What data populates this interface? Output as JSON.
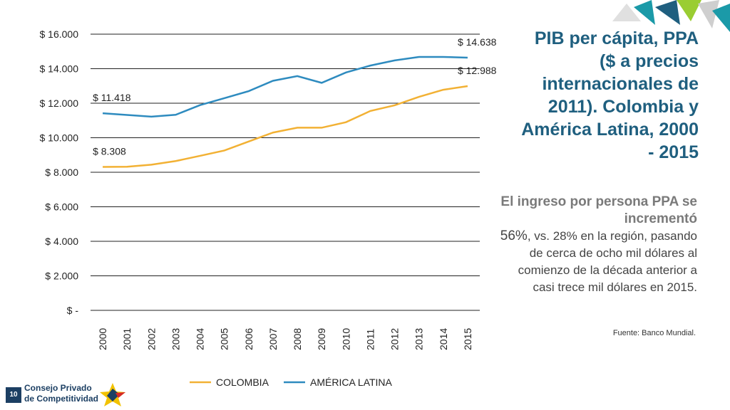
{
  "chart_data": {
    "type": "line",
    "x": [
      "2000",
      "2001",
      "2002",
      "2003",
      "2004",
      "2005",
      "2006",
      "2007",
      "2008",
      "2009",
      "2010",
      "2011",
      "2012",
      "2013",
      "2014",
      "2015"
    ],
    "series": [
      {
        "name": "COLOMBIA",
        "color": "#f2b134",
        "values": [
          8308,
          8320,
          8440,
          8650,
          8950,
          9260,
          9780,
          10300,
          10580,
          10580,
          10900,
          11550,
          11880,
          12370,
          12780,
          12988
        ]
      },
      {
        "name": "AMÉRICA LATINA",
        "color": "#2e8bbf",
        "values": [
          11418,
          11320,
          11220,
          11330,
          11890,
          12290,
          12700,
          13300,
          13570,
          13180,
          13780,
          14180,
          14480,
          14680,
          14680,
          14638
        ]
      }
    ],
    "y_ticks": [
      {
        "value": 0,
        "label": "$ -"
      },
      {
        "value": 2000,
        "label": "$ 2.000"
      },
      {
        "value": 4000,
        "label": "$ 4.000"
      },
      {
        "value": 6000,
        "label": "$ 6.000"
      },
      {
        "value": 8000,
        "label": "$ 8.000"
      },
      {
        "value": 10000,
        "label": "$ 10.000"
      },
      {
        "value": 12000,
        "label": "$ 12.000"
      },
      {
        "value": 14000,
        "label": "$ 14.000"
      },
      {
        "value": 16000,
        "label": "$ 16.000"
      }
    ],
    "ylim": [
      0,
      16000
    ],
    "grid": true,
    "legend_position": "bottom",
    "annotations": [
      {
        "series": 0,
        "index": 0,
        "text": "$ 8.308"
      },
      {
        "series": 1,
        "index": 0,
        "text": "$ 11.418"
      },
      {
        "series": 0,
        "index": 15,
        "text": "$ 12.988"
      },
      {
        "series": 1,
        "index": 15,
        "text": "$ 14.638"
      }
    ]
  },
  "title": "PIB per cápita, PPA ($ a precios internacionales de 2011). Colombia y América Latina, 2000 - 2015",
  "body": {
    "lead": "El ingreso por persona PPA se incrementó",
    "pct": "56%",
    "rest": ", vs. 28% en la región, pasando de cerca de ocho mil dólares al comienzo de la década anterior a casi trece mil dólares en 2015."
  },
  "source": "Fuente: Banco Mundial.",
  "logo": {
    "badge": "10",
    "line1": "Consejo Privado",
    "line2": "de Competitividad"
  }
}
